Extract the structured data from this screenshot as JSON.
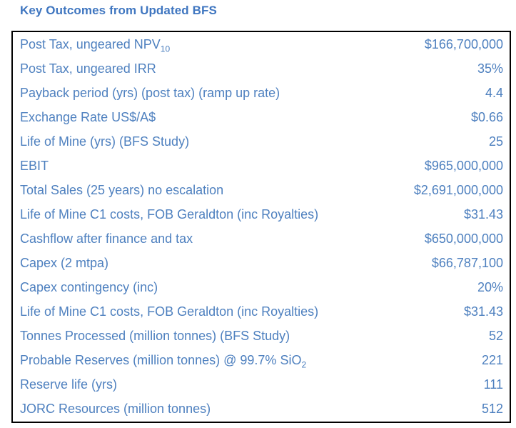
{
  "title": "Key Outcomes from Updated BFS",
  "colors": {
    "title_blue": "#3f76c0",
    "text_blue": "#4e80bf",
    "row_divider": "#9db4cd",
    "table_border": "#000000",
    "background": "#ffffff"
  },
  "table": {
    "rows": [
      {
        "label": "Post Tax, ungeared NPV",
        "label_subscript": "10",
        "value": "$166,700,000"
      },
      {
        "label": "Post Tax, ungeared IRR",
        "value": "35%"
      },
      {
        "label": "Payback period (yrs) (post tax) (ramp up rate)",
        "value": "4.4"
      },
      {
        "label": "Exchange Rate US$/A$",
        "value": "$0.66"
      },
      {
        "label": "Life of Mine (yrs) (BFS Study)",
        "value": "25"
      },
      {
        "label": "EBIT",
        "value": "$965,000,000"
      },
      {
        "label": "Total Sales (25 years) no escalation",
        "value": "$2,691,000,000"
      },
      {
        "label": "Life of Mine C1 costs, FOB Geraldton (inc Royalties)",
        "value": "$31.43"
      },
      {
        "label": "Cashflow after finance and tax",
        "value": "$650,000,000"
      },
      {
        "label": "Capex (2 mtpa)",
        "value": "$66,787,100"
      },
      {
        "label": "Capex contingency (inc)",
        "value": "20%"
      },
      {
        "label": "Life of Mine C1 costs, FOB Geraldton (inc Royalties)",
        "value": "$31.43"
      },
      {
        "label": "Tonnes Processed (million tonnes) (BFS Study)",
        "value": "52"
      },
      {
        "label": "Probable Reserves (million tonnes) @ 99.7% SiO",
        "label_subscript": "2",
        "value": "221"
      },
      {
        "label": "Reserve life (yrs)",
        "value": "111"
      },
      {
        "label": "JORC Resources (million tonnes)",
        "value": "512"
      }
    ]
  }
}
